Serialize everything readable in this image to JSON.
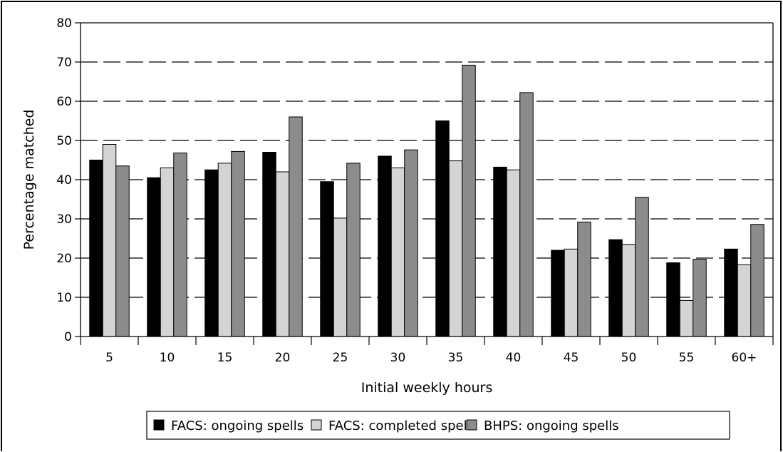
{
  "chart_data": {
    "type": "bar",
    "categories": [
      "5",
      "10",
      "15",
      "20",
      "25",
      "30",
      "35",
      "40",
      "45",
      "50",
      "55",
      "60+"
    ],
    "series": [
      {
        "name": "FACS: ongoing spells",
        "color": "#000000",
        "values": [
          45,
          40.5,
          42.5,
          47,
          39.5,
          46,
          55,
          43.2,
          22,
          24.7,
          18.8,
          22.3
        ]
      },
      {
        "name": "FACS: completed spells",
        "color": "#d4d4d4",
        "values": [
          49,
          43,
          44.2,
          42,
          30.2,
          43,
          44.8,
          42.5,
          22.3,
          23.5,
          9.2,
          18.3
        ]
      },
      {
        "name": "BHPS: ongoing spells",
        "color": "#8c8c8c",
        "values": [
          43.5,
          46.8,
          47.2,
          56,
          44.2,
          47.6,
          69.2,
          62.2,
          29.2,
          35.5,
          19.7,
          28.6
        ]
      }
    ],
    "xlabel": "Initial weekly hours",
    "ylabel": "Percentage matched",
    "ylim": [
      0,
      80
    ],
    "yticks": [
      "0",
      "10",
      "20",
      "30",
      "40",
      "50",
      "60",
      "70",
      "80"
    ],
    "grid": "horizontal dashed",
    "legend_position": "bottom"
  }
}
